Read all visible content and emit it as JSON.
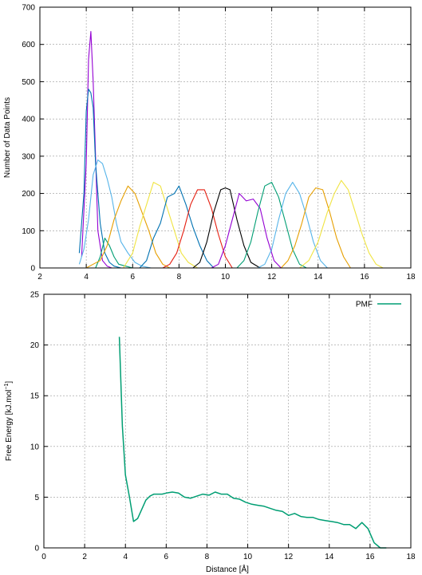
{
  "chart_data": [
    {
      "type": "line",
      "title": "",
      "xlabel": "",
      "ylabel": "Number of Data Points",
      "xlim": [
        2,
        18
      ],
      "ylim": [
        0,
        700
      ],
      "xticks": [
        "2",
        "4",
        "6",
        "8",
        "10",
        "12",
        "14",
        "16",
        "18"
      ],
      "yticks": [
        "0",
        "100",
        "200",
        "300",
        "400",
        "500",
        "600",
        "700"
      ],
      "grid": true,
      "legend": "none",
      "series": [
        {
          "color": "#9400d3",
          "x": [
            3.8,
            4.0,
            4.1,
            4.2,
            4.3,
            4.4,
            4.5,
            4.7,
            4.9,
            5.1
          ],
          "y": [
            30,
            280,
            560,
            635,
            500,
            300,
            100,
            20,
            5,
            0
          ]
        },
        {
          "color": "#0072b2",
          "x": [
            3.7,
            3.9,
            4.0,
            4.1,
            4.2,
            4.3,
            4.4,
            4.6,
            4.8,
            5.0,
            5.2,
            5.5
          ],
          "y": [
            40,
            200,
            420,
            480,
            470,
            430,
            280,
            120,
            40,
            15,
            5,
            0
          ]
        },
        {
          "color": "#56b4e9",
          "x": [
            3.7,
            3.9,
            4.1,
            4.3,
            4.5,
            4.7,
            4.9,
            5.1,
            5.3,
            5.5,
            5.8,
            6.1,
            6.4,
            6.8
          ],
          "y": [
            10,
            50,
            130,
            250,
            290,
            280,
            240,
            190,
            120,
            70,
            40,
            15,
            5,
            0
          ]
        },
        {
          "color": "#009e73",
          "x": [
            4.4,
            4.6,
            4.8,
            5.0,
            5.2,
            5.4,
            5.7,
            6.0
          ],
          "y": [
            0,
            30,
            80,
            60,
            30,
            10,
            5,
            0
          ]
        },
        {
          "color": "#e69f00",
          "x": [
            4.0,
            4.3,
            4.6,
            4.9,
            5.2,
            5.5,
            5.8,
            6.1,
            6.4,
            6.7,
            7.0,
            7.3,
            7.6
          ],
          "y": [
            0,
            10,
            20,
            60,
            130,
            180,
            220,
            200,
            150,
            100,
            40,
            10,
            0
          ]
        },
        {
          "color": "#f0e442",
          "x": [
            5.6,
            6.0,
            6.3,
            6.6,
            6.9,
            7.2,
            7.5,
            7.8,
            8.1,
            8.4,
            8.8
          ],
          "y": [
            0,
            40,
            110,
            170,
            230,
            220,
            160,
            100,
            40,
            15,
            0
          ]
        },
        {
          "color": "#0072b2",
          "x": [
            6.3,
            6.6,
            6.9,
            7.2,
            7.5,
            7.8,
            8.0,
            8.3,
            8.6,
            8.9,
            9.2,
            9.5
          ],
          "y": [
            0,
            20,
            80,
            120,
            190,
            200,
            220,
            170,
            110,
            60,
            20,
            0
          ]
        },
        {
          "color": "#e51e10",
          "x": [
            7.3,
            7.6,
            7.9,
            8.2,
            8.5,
            8.8,
            9.1,
            9.4,
            9.7,
            10.0,
            10.3
          ],
          "y": [
            0,
            10,
            40,
            100,
            170,
            210,
            210,
            160,
            90,
            30,
            0
          ]
        },
        {
          "color": "#000000",
          "x": [
            8.6,
            8.9,
            9.2,
            9.5,
            9.8,
            10.0,
            10.2,
            10.5,
            10.8,
            11.1,
            11.5
          ],
          "y": [
            0,
            15,
            70,
            150,
            210,
            215,
            210,
            130,
            60,
            15,
            0
          ]
        },
        {
          "color": "#9400d3",
          "x": [
            9.4,
            9.7,
            10.0,
            10.3,
            10.6,
            10.9,
            11.2,
            11.5,
            11.8,
            12.1,
            12.4
          ],
          "y": [
            0,
            10,
            60,
            130,
            200,
            180,
            185,
            160,
            80,
            20,
            0
          ]
        },
        {
          "color": "#009e73",
          "x": [
            10.5,
            10.8,
            11.1,
            11.4,
            11.7,
            12.0,
            12.3,
            12.6,
            12.9,
            13.2,
            13.5
          ],
          "y": [
            0,
            20,
            70,
            150,
            220,
            230,
            190,
            120,
            50,
            10,
            0
          ]
        },
        {
          "color": "#56b4e9",
          "x": [
            11.4,
            11.7,
            12.0,
            12.3,
            12.6,
            12.9,
            13.2,
            13.5,
            13.8,
            14.1,
            14.4
          ],
          "y": [
            0,
            10,
            50,
            130,
            200,
            230,
            200,
            140,
            70,
            20,
            0
          ]
        },
        {
          "color": "#e69f00",
          "x": [
            12.4,
            12.7,
            13.0,
            13.3,
            13.6,
            13.9,
            14.2,
            14.5,
            14.8,
            15.1,
            15.4
          ],
          "y": [
            0,
            20,
            60,
            120,
            190,
            215,
            210,
            150,
            80,
            30,
            0
          ]
        },
        {
          "color": "#f0e442",
          "x": [
            13.2,
            13.6,
            14.0,
            14.4,
            14.7,
            15.0,
            15.3,
            15.6,
            15.9,
            16.2,
            16.5,
            16.8
          ],
          "y": [
            0,
            20,
            70,
            150,
            200,
            235,
            210,
            150,
            90,
            40,
            10,
            0
          ]
        }
      ]
    },
    {
      "type": "line",
      "title": "",
      "xlabel": "Distance [Å]",
      "ylabel": "Free Energy [kJ.mol⁻¹]",
      "xlim": [
        0,
        18
      ],
      "ylim": [
        0,
        25
      ],
      "xticks": [
        "0",
        "2",
        "4",
        "6",
        "8",
        "10",
        "12",
        "14",
        "16",
        "18"
      ],
      "yticks": [
        "0",
        "5",
        "10",
        "15",
        "20",
        "25"
      ],
      "grid": true,
      "legend": "top-right",
      "series": [
        {
          "name": "PMF",
          "color": "#009e73",
          "x": [
            3.7,
            3.85,
            4.0,
            4.2,
            4.4,
            4.6,
            4.8,
            5.0,
            5.2,
            5.4,
            5.6,
            5.8,
            6.0,
            6.3,
            6.6,
            6.9,
            7.2,
            7.5,
            7.8,
            8.1,
            8.4,
            8.7,
            9.0,
            9.3,
            9.6,
            9.9,
            10.2,
            10.5,
            10.8,
            11.1,
            11.4,
            11.7,
            12.0,
            12.3,
            12.6,
            12.9,
            13.2,
            13.5,
            13.8,
            14.1,
            14.4,
            14.7,
            15.0,
            15.3,
            15.6,
            15.9,
            16.2,
            16.5,
            16.8
          ],
          "y": [
            20.8,
            12.0,
            7.2,
            5.0,
            2.6,
            2.9,
            3.8,
            4.7,
            5.1,
            5.3,
            5.3,
            5.3,
            5.4,
            5.5,
            5.4,
            5.0,
            4.9,
            5.1,
            5.3,
            5.2,
            5.5,
            5.3,
            5.3,
            4.9,
            4.8,
            4.5,
            4.3,
            4.2,
            4.1,
            3.9,
            3.7,
            3.6,
            3.2,
            3.4,
            3.1,
            3.0,
            3.0,
            2.8,
            2.7,
            2.6,
            2.5,
            2.3,
            2.3,
            1.9,
            2.5,
            1.9,
            0.5,
            0.0,
            0.0
          ]
        }
      ]
    }
  ]
}
